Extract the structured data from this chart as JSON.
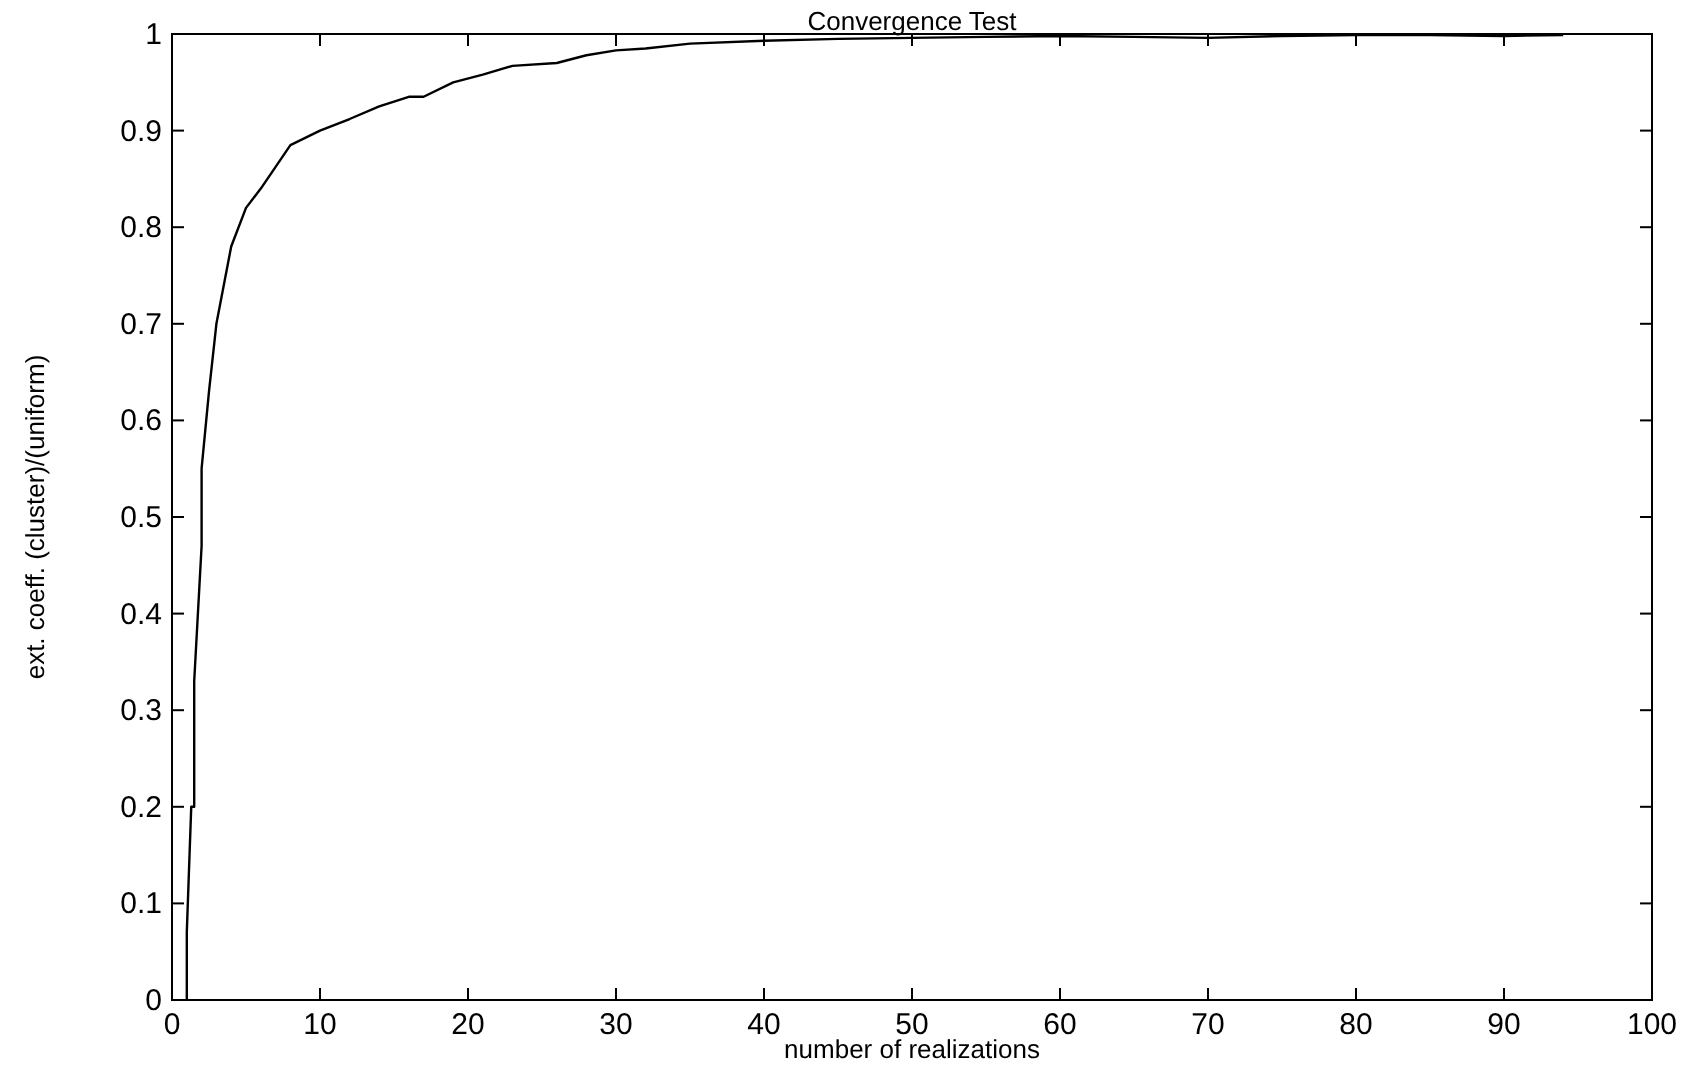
{
  "chart_data": {
    "type": "line",
    "title": "Convergence Test",
    "xlabel": "number of realizations",
    "ylabel": "ext. coeff. (cluster)/(uniform)",
    "x": [
      1,
      1,
      1.3,
      1.5,
      1.5,
      2,
      2,
      2.5,
      3,
      4,
      5,
      6,
      8,
      10,
      12,
      14,
      16,
      17,
      19,
      21,
      23,
      26,
      28,
      30,
      32,
      35,
      40,
      45,
      50,
      55,
      60,
      65,
      70,
      75,
      80,
      85,
      90,
      94
    ],
    "series": [
      {
        "color": "#000000",
        "values": [
          0,
          0.07,
          0.2,
          0.2,
          0.33,
          0.47,
          0.55,
          0.63,
          0.7,
          0.78,
          0.82,
          0.84,
          0.885,
          0.9,
          0.912,
          0.925,
          0.935,
          0.935,
          0.95,
          0.958,
          0.967,
          0.97,
          0.978,
          0.983,
          0.985,
          0.99,
          0.993,
          0.995,
          0.996,
          0.997,
          0.998,
          0.997,
          0.996,
          0.998,
          0.999,
          0.999,
          0.998,
          0.999
        ]
      }
    ],
    "xlim": [
      0,
      100
    ],
    "xticks": [
      0,
      10,
      20,
      30,
      40,
      50,
      60,
      70,
      80,
      90,
      100
    ],
    "ylim": [
      0,
      1
    ],
    "yticks": [
      0,
      0.1,
      0.2,
      0.3,
      0.4,
      0.5,
      0.6,
      0.7,
      0.8,
      0.9,
      1
    ],
    "grid": false,
    "line_style": "solid"
  }
}
